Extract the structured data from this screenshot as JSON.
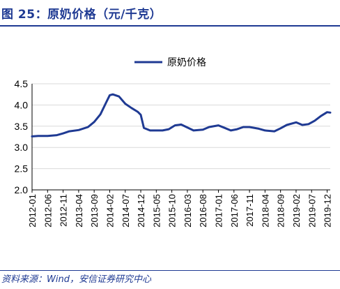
{
  "figure_title": "图 25：原奶价格（元/千克）",
  "source": "资料来源：Wind，安信证券研究中心",
  "colors": {
    "line": "#1f3a93",
    "axis": "#000000",
    "grid": "#d9d9d9",
    "title": "#1f3a93"
  },
  "chart_data": {
    "type": "line",
    "title": "",
    "xlabel": "",
    "ylabel": "",
    "ylim": [
      2.0,
      4.5
    ],
    "yticks": [
      "2.0",
      "2.5",
      "3.0",
      "3.5",
      "4.0",
      "4.5"
    ],
    "xticks": [
      "2012-01",
      "2012-06",
      "2012-11",
      "2013-04",
      "2013-09",
      "2014-02",
      "2014-07",
      "2014-12",
      "2015-05",
      "2015-10",
      "2016-03",
      "2016-08",
      "2017-01",
      "2017-06",
      "2017-11",
      "2018-04",
      "2018-09",
      "2019-02",
      "2019-07",
      "2019-12"
    ],
    "grid": true,
    "legend": "top-center",
    "series": [
      {
        "name": "原奶价格",
        "color": "#1f3a93",
        "points": [
          [
            "2012-01",
            3.26
          ],
          [
            "2012-03",
            3.27
          ],
          [
            "2012-06",
            3.27
          ],
          [
            "2012-09",
            3.29
          ],
          [
            "2012-11",
            3.33
          ],
          [
            "2013-01",
            3.38
          ],
          [
            "2013-04",
            3.41
          ],
          [
            "2013-07",
            3.48
          ],
          [
            "2013-09",
            3.6
          ],
          [
            "2013-11",
            3.78
          ],
          [
            "2014-01",
            4.08
          ],
          [
            "2014-02",
            4.23
          ],
          [
            "2014-03",
            4.25
          ],
          [
            "2014-05",
            4.2
          ],
          [
            "2014-07",
            4.03
          ],
          [
            "2014-09",
            3.93
          ],
          [
            "2014-11",
            3.84
          ],
          [
            "2014-12",
            3.77
          ],
          [
            "2015-01",
            3.46
          ],
          [
            "2015-03",
            3.4
          ],
          [
            "2015-05",
            3.4
          ],
          [
            "2015-07",
            3.4
          ],
          [
            "2015-09",
            3.43
          ],
          [
            "2015-11",
            3.52
          ],
          [
            "2016-01",
            3.54
          ],
          [
            "2016-03",
            3.47
          ],
          [
            "2016-05",
            3.4
          ],
          [
            "2016-08",
            3.42
          ],
          [
            "2016-10",
            3.48
          ],
          [
            "2017-01",
            3.52
          ],
          [
            "2017-03",
            3.46
          ],
          [
            "2017-05",
            3.4
          ],
          [
            "2017-07",
            3.43
          ],
          [
            "2017-09",
            3.48
          ],
          [
            "2017-11",
            3.48
          ],
          [
            "2018-02",
            3.44
          ],
          [
            "2018-04",
            3.4
          ],
          [
            "2018-07",
            3.38
          ],
          [
            "2018-09",
            3.45
          ],
          [
            "2018-11",
            3.53
          ],
          [
            "2019-02",
            3.59
          ],
          [
            "2019-04",
            3.53
          ],
          [
            "2019-06",
            3.55
          ],
          [
            "2019-08",
            3.63
          ],
          [
            "2019-10",
            3.74
          ],
          [
            "2019-12",
            3.83
          ],
          [
            "2020-01",
            3.82
          ]
        ]
      }
    ]
  }
}
